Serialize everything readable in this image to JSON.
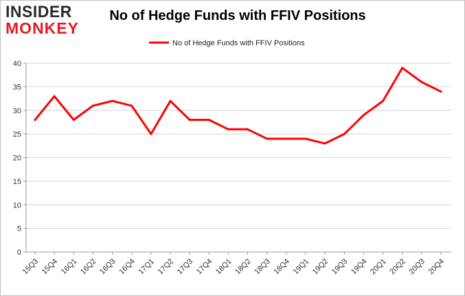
{
  "logo": {
    "top": "INSIDER",
    "bottom": "MONKEY"
  },
  "chart_data": {
    "type": "line",
    "title": "No of Hedge Funds with FFIV Positions",
    "xlabel": "",
    "ylabel": "",
    "ylim": [
      0,
      40
    ],
    "yticks": [
      0,
      5,
      10,
      15,
      20,
      25,
      30,
      35,
      40
    ],
    "grid": true,
    "legend_position": "top-center",
    "categories": [
      "15Q3",
      "15Q4",
      "16Q1",
      "16Q2",
      "16Q3",
      "16Q4",
      "17Q1",
      "17Q2",
      "17Q3",
      "17Q4",
      "18Q1",
      "18Q2",
      "18Q3",
      "18Q4",
      "19Q1",
      "19Q2",
      "19Q3",
      "19Q4",
      "20Q1",
      "20Q2",
      "20Q3",
      "20Q4"
    ],
    "series": [
      {
        "name": "No of Hedge Funds with FFIV Positions",
        "color": "#ff0000",
        "values": [
          28,
          33,
          28,
          31,
          32,
          31,
          25,
          32,
          28,
          28,
          26,
          26,
          24,
          24,
          24,
          23,
          25,
          29,
          32,
          39,
          36,
          34
        ]
      }
    ]
  }
}
